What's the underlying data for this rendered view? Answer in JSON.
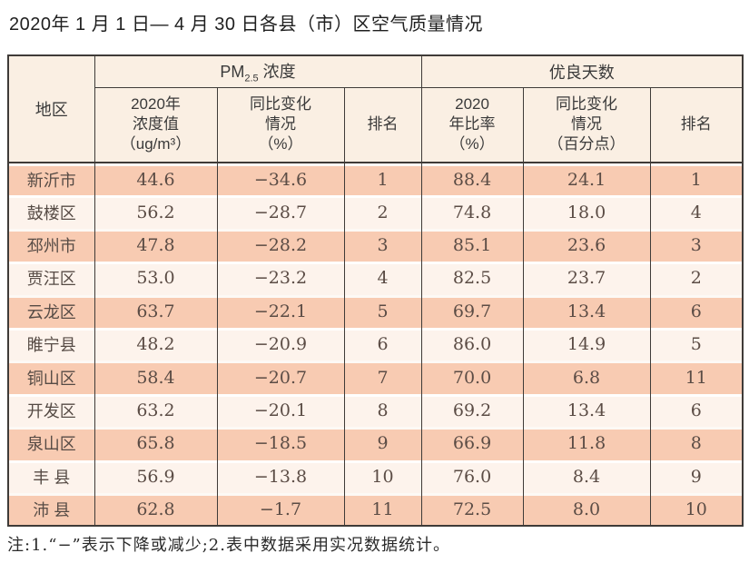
{
  "page": {
    "title": "2020年 1 月 1 日— 4 月 30 日各县（市）区空气质量情况",
    "note": "注:1.“−”表示下降或减少;2.表中数据采用实况数据统计。"
  },
  "colors": {
    "border": "#3f3b38",
    "header_bg": "#faefe3",
    "row_peach": "#f8cbb2",
    "row_cream": "#fdf3ec"
  },
  "table": {
    "group_headers": {
      "region": "地区",
      "pm25_prefix": "PM",
      "pm25_sub": "2.5",
      "pm25_suffix": " 浓度",
      "good_days": "优良天数"
    },
    "sub_headers": {
      "pm_value": "2020年\n浓度值\n（ug/m³）",
      "pm_change": "同比变化\n情况\n（%）",
      "pm_rank": "排名",
      "gd_ratio": "2020\n年比率\n（%）",
      "gd_change": "同比变化\n情况\n（百分点）",
      "gd_rank": "排名"
    },
    "rows": [
      [
        "新沂市",
        "44.6",
        "−34.6",
        "1",
        "88.4",
        "24.1",
        "1"
      ],
      [
        "鼓楼区",
        "56.2",
        "−28.7",
        "2",
        "74.8",
        "18.0",
        "4"
      ],
      [
        "邳州市",
        "47.8",
        "−28.2",
        "3",
        "85.1",
        "23.6",
        "3"
      ],
      [
        "贾汪区",
        "53.0",
        "−23.2",
        "4",
        "82.5",
        "23.7",
        "2"
      ],
      [
        "云龙区",
        "63.7",
        "−22.1",
        "5",
        "69.7",
        "13.4",
        "6"
      ],
      [
        "睢宁县",
        "48.2",
        "−20.9",
        "6",
        "86.0",
        "14.9",
        "5"
      ],
      [
        "铜山区",
        "58.4",
        "−20.7",
        "7",
        "70.0",
        "6.8",
        "11"
      ],
      [
        "开发区",
        "63.2",
        "−20.1",
        "8",
        "69.2",
        "13.4",
        "6"
      ],
      [
        "泉山区",
        "65.8",
        "−18.5",
        "9",
        "66.9",
        "11.8",
        "8"
      ],
      [
        "丰 县",
        "56.9",
        "−13.8",
        "10",
        "76.0",
        "8.4",
        "9"
      ],
      [
        "沛 县",
        "62.8",
        "−1.7",
        "11",
        "72.5",
        "8.0",
        "10"
      ]
    ]
  }
}
